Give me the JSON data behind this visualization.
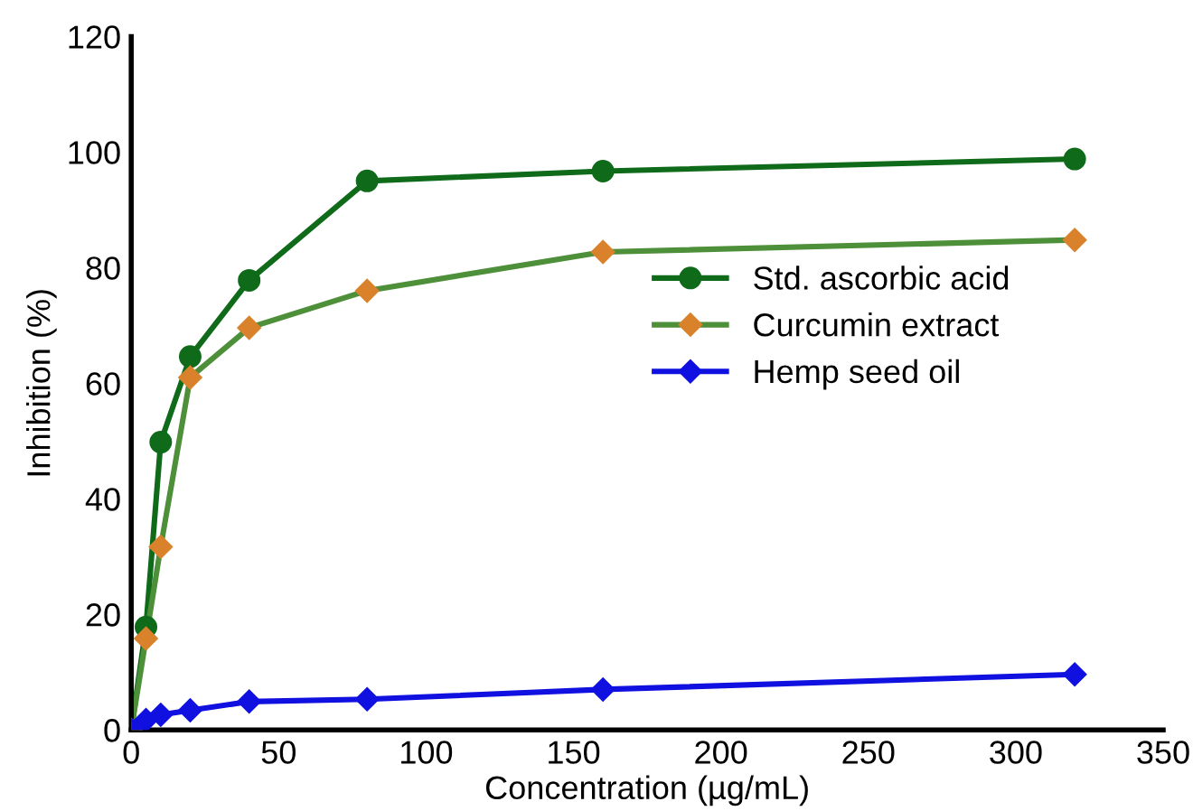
{
  "chart_data": {
    "type": "line",
    "xlabel": "Concentration (µg/mL)",
    "ylabel": "Inhibition (%)",
    "xlim": [
      0,
      350
    ],
    "xticks": [
      0,
      50,
      100,
      150,
      200,
      250,
      300,
      350
    ],
    "ylim": [
      0,
      120
    ],
    "yticks": [
      0,
      20,
      40,
      60,
      80,
      100,
      120
    ],
    "x": [
      0,
      5,
      10,
      20,
      40,
      80,
      160,
      320
    ],
    "grid": false,
    "legend": "right",
    "series": [
      {
        "name": "Std. ascorbic acid",
        "color": "#0f6b1a",
        "marker": "circle",
        "values": [
          0,
          17.8,
          49.8,
          64.6,
          77.8,
          95,
          96.7,
          98.8
        ]
      },
      {
        "name": "Curcumin extract",
        "color": "#4e8f3a",
        "colors": [
          "#d9822b",
          "#d9822b",
          "#d9822b",
          "#d9822b",
          "#d9822b",
          "#d9822b",
          "#d9822b",
          "#d9822b"
        ],
        "marker": "diamond",
        "values": [
          0,
          15.8,
          31.7,
          61,
          69.6,
          76,
          82.7,
          84.8
        ]
      },
      {
        "name": "Hemp seed oil",
        "color": "#1010e0",
        "marker": "diamond",
        "values": [
          0,
          1.7,
          2.6,
          3.4,
          4.9,
          5.3,
          7,
          9.6
        ]
      }
    ]
  }
}
